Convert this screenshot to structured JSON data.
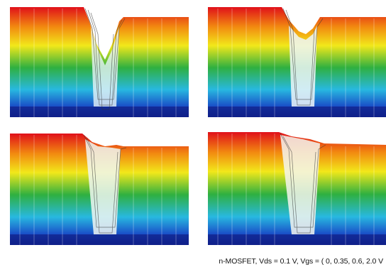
{
  "caption": "n-MOSFET, Vds = 0.1 V, Vgs = ( 0, 0.35, 0.6, 2.0 V",
  "panels": [
    {
      "name": "vgs-0"
    },
    {
      "name": "vgs-0.35"
    },
    {
      "name": "vgs-0.6"
    },
    {
      "name": "vgs-2.0"
    }
  ],
  "colors": {
    "top": "#e0101a",
    "orange": "#f28a10",
    "yellow": "#f2e81a",
    "green": "#2fb040",
    "cyan": "#28b8e0",
    "blue": "#1a50c8",
    "base": "#10208a"
  }
}
